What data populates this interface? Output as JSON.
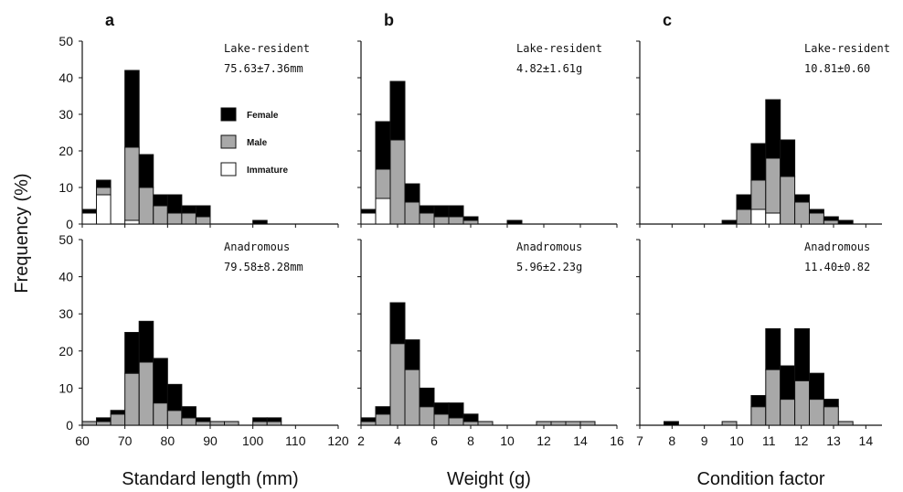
{
  "colors": {
    "female": "#000000",
    "male": "#a8a8a8",
    "immature": "#ffffff",
    "axis": "#111111"
  },
  "ylabel": "Frequency (%)",
  "legend": {
    "placement": "inside panel a, top",
    "entries": [
      "Female",
      "Male",
      "Immature"
    ]
  },
  "chart_data": [
    {
      "type": "bar",
      "stacked": true,
      "panel": "a",
      "annotation": [
        "Lake-resident",
        "75.63±7.36mm"
      ],
      "xlim": [
        60,
        120
      ],
      "ylim": [
        0,
        50
      ],
      "bin_width": 3.33,
      "bin_starts": [
        60,
        63.33,
        66.67,
        70,
        73.33,
        76.67,
        80,
        83.33,
        86.67,
        90,
        93.33,
        96.67,
        100
      ],
      "series": [
        {
          "name": "Immature",
          "values": [
            3,
            8,
            0,
            1,
            0,
            0,
            0,
            0,
            0,
            0,
            0,
            0,
            0
          ]
        },
        {
          "name": "Male",
          "values": [
            0,
            2,
            0,
            20,
            10,
            5,
            3,
            3,
            2,
            0,
            0,
            0,
            0
          ]
        },
        {
          "name": "Female",
          "values": [
            1,
            2,
            0,
            21,
            9,
            3,
            5,
            2,
            3,
            0,
            0,
            0,
            1
          ]
        }
      ]
    },
    {
      "type": "bar",
      "stacked": true,
      "panel": "b",
      "annotation": [
        "Lake-resident",
        "4.82±1.61g"
      ],
      "xlim": [
        2,
        16
      ],
      "ylim": [
        0,
        50
      ],
      "bin_width": 0.8,
      "bin_starts": [
        2,
        2.8,
        3.6,
        4.4,
        5.2,
        6.0,
        6.8,
        7.6,
        8.4,
        9.2,
        10.0,
        10.8,
        11.6
      ],
      "series": [
        {
          "name": "Immature",
          "values": [
            3,
            7,
            0,
            0,
            0,
            0,
            0,
            0,
            0,
            0,
            0,
            0,
            0
          ]
        },
        {
          "name": "Male",
          "values": [
            0,
            8,
            23,
            6,
            3,
            2,
            2,
            1,
            0,
            0,
            0,
            0,
            0
          ]
        },
        {
          "name": "Female",
          "values": [
            1,
            13,
            16,
            5,
            2,
            3,
            3,
            1,
            0,
            0,
            1,
            0,
            0
          ]
        }
      ]
    },
    {
      "type": "bar",
      "stacked": true,
      "panel": "c",
      "annotation": [
        "Lake-resident",
        "10.81±0.60"
      ],
      "xlim": [
        7,
        14.5
      ],
      "ylim": [
        0,
        50
      ],
      "bin_width": 0.45,
      "bin_starts": [
        9.55,
        10.0,
        10.45,
        10.9,
        11.35,
        11.8,
        12.25,
        12.7,
        13.15
      ],
      "series": [
        {
          "name": "Immature",
          "values": [
            0,
            0,
            4,
            3,
            0,
            0,
            0,
            0,
            0
          ]
        },
        {
          "name": "Male",
          "values": [
            0,
            4,
            8,
            15,
            13,
            6,
            3,
            1,
            0
          ]
        },
        {
          "name": "Female",
          "values": [
            1,
            4,
            10,
            16,
            10,
            2,
            1,
            1,
            1
          ]
        }
      ]
    },
    {
      "type": "bar",
      "stacked": true,
      "panel": "a",
      "annotation": [
        "Anadromous",
        "79.58±8.28mm"
      ],
      "xlim": [
        60,
        120
      ],
      "ylim": [
        0,
        50
      ],
      "bin_width": 3.33,
      "bin_starts": [
        60,
        63.33,
        66.67,
        70,
        73.33,
        76.67,
        80,
        83.33,
        86.67,
        90,
        93.33,
        96.67,
        100,
        103.33
      ],
      "series": [
        {
          "name": "Male",
          "values": [
            1,
            1,
            3,
            14,
            17,
            6,
            4,
            2,
            1,
            1,
            1,
            0,
            1,
            1
          ]
        },
        {
          "name": "Female",
          "values": [
            0,
            1,
            1,
            11,
            11,
            12,
            7,
            3,
            1,
            0,
            0,
            0,
            1,
            1
          ]
        }
      ]
    },
    {
      "type": "bar",
      "stacked": true,
      "panel": "b",
      "annotation": [
        "Anadromous",
        "5.96±2.23g"
      ],
      "xlim": [
        2,
        16
      ],
      "ylim": [
        0,
        50
      ],
      "bin_width": 0.8,
      "bin_starts": [
        2,
        2.8,
        3.6,
        4.4,
        5.2,
        6.0,
        6.8,
        7.6,
        8.4,
        9.2,
        10.0,
        10.8,
        11.6,
        12.4,
        13.2,
        14.0,
        14.8
      ],
      "series": [
        {
          "name": "Male",
          "values": [
            1,
            3,
            22,
            15,
            5,
            3,
            2,
            1,
            1,
            0,
            0,
            0,
            1,
            1,
            1,
            1,
            0
          ]
        },
        {
          "name": "Female",
          "values": [
            1,
            2,
            11,
            8,
            5,
            3,
            4,
            2,
            0,
            0,
            0,
            0,
            0,
            0,
            0,
            0,
            0
          ]
        }
      ]
    },
    {
      "type": "bar",
      "stacked": true,
      "panel": "c",
      "annotation": [
        "Anadromous",
        "11.40±0.82"
      ],
      "xlim": [
        7,
        14.5
      ],
      "ylim": [
        0,
        50
      ],
      "bin_width": 0.45,
      "bin_starts": [
        7.75,
        8.2,
        8.65,
        9.1,
        9.55,
        10.0,
        10.45,
        10.9,
        11.35,
        11.8,
        12.25,
        12.7,
        13.15
      ],
      "series": [
        {
          "name": "Male",
          "values": [
            0,
            0,
            0,
            0,
            1,
            0,
            5,
            15,
            7,
            12,
            7,
            5,
            1
          ]
        },
        {
          "name": "Female",
          "values": [
            1,
            0,
            0,
            0,
            0,
            0,
            3,
            11,
            9,
            14,
            7,
            2,
            0
          ]
        }
      ]
    }
  ],
  "axes": [
    {
      "panel": "a",
      "letter": "a",
      "xlabel": "Standard length (mm)",
      "xticks": [
        "60",
        "70",
        "80",
        "90",
        "100",
        "110",
        "120"
      ],
      "xtick_values": [
        60,
        70,
        80,
        90,
        100,
        110,
        120
      ]
    },
    {
      "panel": "b",
      "letter": "b",
      "xlabel": "Weight (g)",
      "xticks": [
        "2",
        "4",
        "6",
        "8",
        "10",
        "12",
        "14",
        "16"
      ],
      "xtick_values": [
        2,
        4,
        6,
        8,
        10,
        12,
        14,
        16
      ]
    },
    {
      "panel": "c",
      "letter": "c",
      "xlabel": "Condition factor",
      "xticks": [
        "7",
        "8",
        "9",
        "10",
        "11",
        "12",
        "13",
        "14"
      ],
      "xtick_values": [
        7,
        8,
        9,
        10,
        11,
        12,
        13,
        14
      ]
    }
  ],
  "yticks": [
    "0",
    "10",
    "20",
    "30",
    "40",
    "50"
  ],
  "ytick_values": [
    0,
    10,
    20,
    30,
    40,
    50
  ]
}
